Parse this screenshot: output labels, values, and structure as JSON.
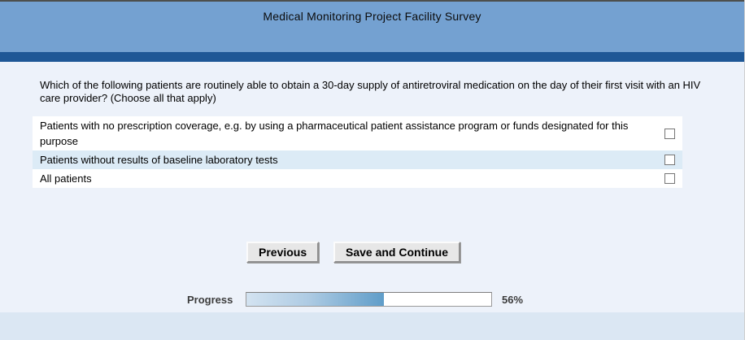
{
  "header": {
    "title": "Medical Monitoring Project Facility Survey"
  },
  "question": {
    "text": "Which of the following patients are routinely able to obtain a 30-day supply of antiretroviral medication on the day of their first visit with an HIV care provider? (Choose all that apply)"
  },
  "options": [
    {
      "label": "Patients with no prescription coverage, e.g. by using a pharmaceutical patient assistance program or funds designated for this purpose",
      "checked": false
    },
    {
      "label": "Patients without results of baseline laboratory tests",
      "checked": false
    },
    {
      "label": "All patients",
      "checked": false
    }
  ],
  "buttons": {
    "previous": "Previous",
    "save_continue": "Save and Continue"
  },
  "progress": {
    "label": "Progress",
    "percent": 56,
    "percent_label": "56%"
  },
  "colors": {
    "header_bg": "#74a1d1",
    "accent_bar": "#1e5796",
    "page_bg": "#edf2fa",
    "footer_bg": "#dbe7f3",
    "row_alt_bg": "#dcebf6",
    "progress_fill_start": "#d3e3f1",
    "progress_fill_end": "#5f9dc9"
  }
}
